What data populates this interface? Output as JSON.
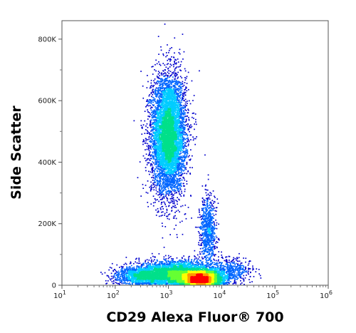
{
  "chart_data": {
    "type": "scatter",
    "subtype": "flow-cytometry-density-dot-plot",
    "xlabel": "CD29 Alexa Fluor® 700",
    "ylabel": "Side Scatter",
    "x_scale": "log",
    "xlim": [
      10,
      1000000
    ],
    "ylim": [
      0,
      860000
    ],
    "x_ticks": [
      {
        "value": 10,
        "base": "10",
        "exp": "1"
      },
      {
        "value": 100,
        "base": "10",
        "exp": "2"
      },
      {
        "value": 1000,
        "base": "10",
        "exp": "3"
      },
      {
        "value": 10000,
        "base": "10",
        "exp": "4"
      },
      {
        "value": 100000,
        "base": "10",
        "exp": "5"
      },
      {
        "value": 1000000,
        "base": "10",
        "exp": "6"
      }
    ],
    "y_ticks": [
      {
        "value": 0,
        "label": "0"
      },
      {
        "value": 200000,
        "label": "200K"
      },
      {
        "value": 400000,
        "label": "400K"
      },
      {
        "value": 600000,
        "label": "600K"
      },
      {
        "value": 800000,
        "label": "800K"
      }
    ],
    "grid": false,
    "legend": "none",
    "density_colormap": [
      "#0000cc",
      "#0066ff",
      "#00ccff",
      "#00e08a",
      "#66ff33",
      "#ffff00",
      "#ff9900",
      "#ff0000"
    ],
    "populations": [
      {
        "center_x": 1000,
        "center_y": 490000,
        "spread_log_x": 0.16,
        "spread_y": 95000,
        "points": 6500
      },
      {
        "center_x": 4000,
        "center_y": 20000,
        "spread_log_x": 0.2,
        "spread_y": 14000,
        "points": 4500
      },
      {
        "center_x": 1400,
        "center_y": 38000,
        "spread_log_x": 0.35,
        "spread_y": 20000,
        "points": 3500
      },
      {
        "center_x": 300,
        "center_y": 30000,
        "spread_log_x": 0.25,
        "spread_y": 15000,
        "points": 1200
      },
      {
        "center_x": 5500,
        "center_y": 170000,
        "spread_log_x": 0.08,
        "spread_y": 60000,
        "points": 800
      },
      {
        "center_x": 15000,
        "center_y": 50000,
        "spread_log_x": 0.2,
        "spread_y": 20000,
        "points": 450
      }
    ]
  }
}
